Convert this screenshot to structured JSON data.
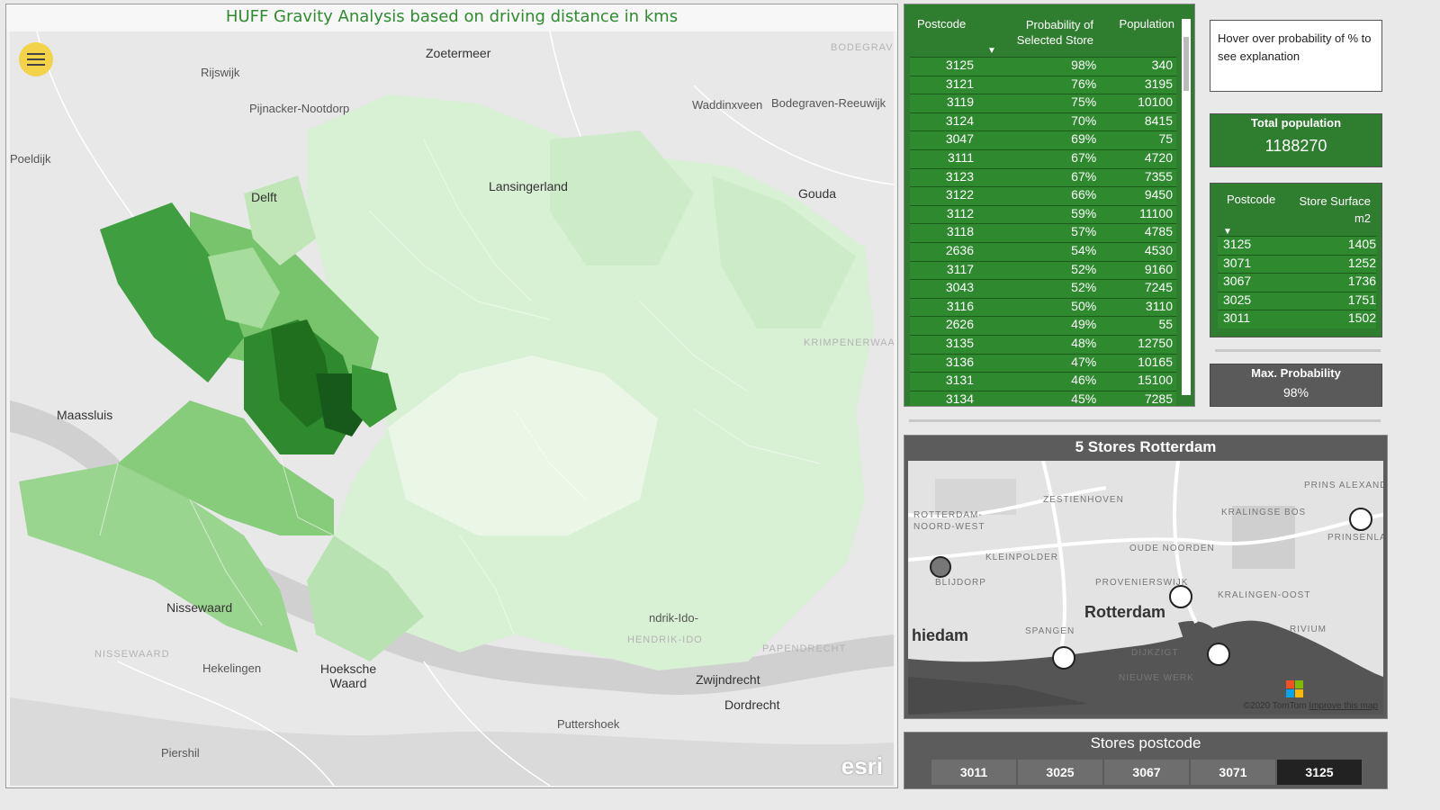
{
  "main": {
    "title": "HUFF Gravity Analysis based on driving distance in kms",
    "map_labels": [
      {
        "text": "Zoetermeer",
        "kind": "big"
      },
      {
        "text": "Rijswijk",
        "kind": "normal"
      },
      {
        "text": "Pijnacker-Nootdorp",
        "kind": "normal"
      },
      {
        "text": "Poeldijk",
        "kind": "normal"
      },
      {
        "text": "Delft",
        "kind": "big"
      },
      {
        "text": "Lansingerland",
        "kind": "big"
      },
      {
        "text": "Waddinxveen",
        "kind": "normal"
      },
      {
        "text": "Bodegraven-Reeuwijk",
        "kind": "normal"
      },
      {
        "text": "Gouda",
        "kind": "big"
      },
      {
        "text": "Maassluis",
        "kind": "big"
      },
      {
        "text": "Nissewaard",
        "kind": "big"
      },
      {
        "text": "Hekelingen",
        "kind": "normal"
      },
      {
        "text": "Hoeksche Waard",
        "kind": "big"
      },
      {
        "text": "Zwijndrecht",
        "kind": "big"
      },
      {
        "text": "Dordrecht",
        "kind": "big"
      },
      {
        "text": "Puttershoek",
        "kind": "normal"
      },
      {
        "text": "Piershil",
        "kind": "normal"
      },
      {
        "text": "KRIMPENERWAARD",
        "kind": "faint"
      },
      {
        "text": "NISSEWAARD",
        "kind": "faint"
      },
      {
        "text": "HENDRIK-IDO",
        "kind": "faint"
      },
      {
        "text": "PAPENDRECHT",
        "kind": "faint"
      },
      {
        "text": "BODEGRAV",
        "kind": "faint"
      },
      {
        "text": "ndrik-Ido-",
        "kind": "normal"
      }
    ],
    "esri": "esri"
  },
  "prob_table": {
    "headers": {
      "postcode": "Postcode",
      "probability": "Probability of Selected Store",
      "population": "Population"
    },
    "rows": [
      {
        "postcode": "3125",
        "prob": "98%",
        "pop": "340"
      },
      {
        "postcode": "3121",
        "prob": "76%",
        "pop": "3195"
      },
      {
        "postcode": "3119",
        "prob": "75%",
        "pop": "10100"
      },
      {
        "postcode": "3124",
        "prob": "70%",
        "pop": "8415"
      },
      {
        "postcode": "3047",
        "prob": "69%",
        "pop": "75"
      },
      {
        "postcode": "3111",
        "prob": "67%",
        "pop": "4720"
      },
      {
        "postcode": "3123",
        "prob": "67%",
        "pop": "7355"
      },
      {
        "postcode": "3122",
        "prob": "66%",
        "pop": "9450"
      },
      {
        "postcode": "3112",
        "prob": "59%",
        "pop": "11100"
      },
      {
        "postcode": "3118",
        "prob": "57%",
        "pop": "4785"
      },
      {
        "postcode": "2636",
        "prob": "54%",
        "pop": "4530"
      },
      {
        "postcode": "3117",
        "prob": "52%",
        "pop": "9160"
      },
      {
        "postcode": "3043",
        "prob": "52%",
        "pop": "7245"
      },
      {
        "postcode": "3116",
        "prob": "50%",
        "pop": "3110"
      },
      {
        "postcode": "2626",
        "prob": "49%",
        "pop": "55"
      },
      {
        "postcode": "3135",
        "prob": "48%",
        "pop": "12750"
      },
      {
        "postcode": "3136",
        "prob": "47%",
        "pop": "10165"
      },
      {
        "postcode": "3131",
        "prob": "46%",
        "pop": "15100"
      },
      {
        "postcode": "3134",
        "prob": "45%",
        "pop": "7285"
      }
    ]
  },
  "hover_box": {
    "text": "Hover over probability of % to see explanation"
  },
  "total_population": {
    "label": "Total population",
    "value": "1188270"
  },
  "surface_table": {
    "headers": {
      "postcode": "Postcode",
      "surface": "Store Surface m2"
    },
    "rows": [
      {
        "postcode": "3125",
        "surface": "1405"
      },
      {
        "postcode": "3071",
        "surface": "1252"
      },
      {
        "postcode": "3067",
        "surface": "1736"
      },
      {
        "postcode": "3025",
        "surface": "1751"
      },
      {
        "postcode": "3011",
        "surface": "1502"
      }
    ]
  },
  "max_probability": {
    "label": "Max. Probability",
    "value": "98%"
  },
  "stores_map": {
    "title": "5 Stores Rotterdam",
    "labels": [
      {
        "text": "ZESTIENHOVEN",
        "kind": "faint"
      },
      {
        "text": "ROTTERDAM-NOORD-WEST",
        "kind": "faint"
      },
      {
        "text": "KRALINGSE BOS",
        "kind": "faint"
      },
      {
        "text": "PRINS ALEXANDER",
        "kind": "faint"
      },
      {
        "text": "KLEINPOLDER",
        "kind": "faint"
      },
      {
        "text": "OUDE NOORDEN",
        "kind": "faint"
      },
      {
        "text": "PROVENIERSWIJK",
        "kind": "faint"
      },
      {
        "text": "KRALINGEN-OOST",
        "kind": "faint"
      },
      {
        "text": "Rotterdam",
        "kind": "big"
      },
      {
        "text": "hiedam",
        "kind": "big"
      },
      {
        "text": "SPANGEN",
        "kind": "faint"
      },
      {
        "text": "DIJKZIGT",
        "kind": "faint"
      },
      {
        "text": "RIVIUM",
        "kind": "faint"
      },
      {
        "text": "NIEUWE WERK",
        "kind": "faint"
      },
      {
        "text": "PRINSENLAND",
        "kind": "faint"
      },
      {
        "text": "BLIJDORP",
        "kind": "faint"
      }
    ],
    "copyright": "©2020 TomTom",
    "improve_link": "Improve this map"
  },
  "slicer": {
    "title": "Stores postcode",
    "options": [
      "3011",
      "3025",
      "3067",
      "3071",
      "3125"
    ],
    "selected": "3125"
  },
  "colors": {
    "accent_green": "#2f7d2f",
    "row_green": "#2f8a2f",
    "title_green": "#2e8b2e",
    "dark_panel": "#5c5c5c",
    "highlight_yellow": "#f3d34a"
  },
  "icons": {
    "menu": "hamburger-menu-icon",
    "sort": "sort-down-icon"
  }
}
